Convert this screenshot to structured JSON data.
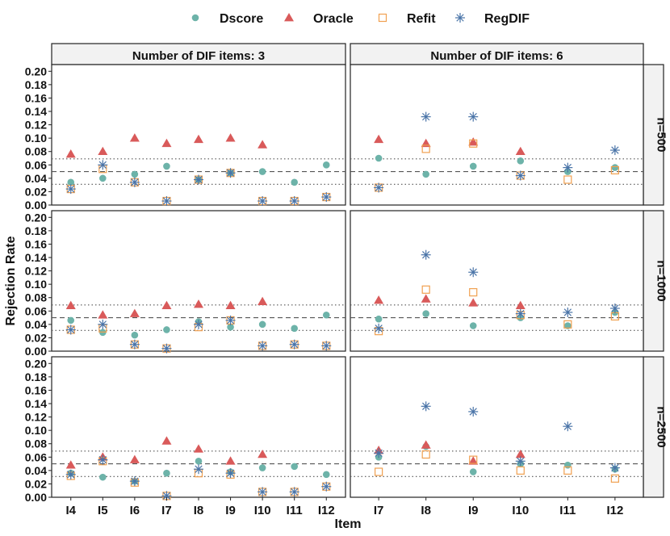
{
  "chart_data": {
    "type": "scatter",
    "facet_rows": [
      "n=500",
      "n=1000",
      "n=2500"
    ],
    "facet_cols": [
      "Number of DIF items: 3",
      "Number of DIF items: 6"
    ],
    "xlabel": "Item",
    "ylabel": "Rejection Rate",
    "ylim": [
      0,
      0.21
    ],
    "yticks": [
      "0.00",
      "0.02",
      "0.04",
      "0.06",
      "0.08",
      "0.10",
      "0.12",
      "0.14",
      "0.16",
      "0.18",
      "0.20"
    ],
    "reference_lines": {
      "dashed": 0.05,
      "dotted": [
        0.031,
        0.069
      ]
    },
    "legend": {
      "position": "top",
      "entries": [
        {
          "name": "Dscore",
          "symbol": "circle",
          "color": "#6db3a9"
        },
        {
          "name": "Oracle",
          "symbol": "triangle",
          "color": "#d95a5a"
        },
        {
          "name": "Refit",
          "symbol": "square-open",
          "color": "#f0a050"
        },
        {
          "name": "RegDIF",
          "symbol": "asterisk",
          "color": "#4a74a8"
        }
      ]
    },
    "panels": [
      {
        "row": 0,
        "col": 0,
        "categories": [
          "I4",
          "I5",
          "I6",
          "I7",
          "I8",
          "I9",
          "I10",
          "I11",
          "I12"
        ],
        "series": [
          {
            "name": "Dscore",
            "values": [
              0.034,
              0.04,
              0.046,
              0.058,
              0.038,
              0.048,
              0.05,
              0.034,
              0.06
            ]
          },
          {
            "name": "Oracle",
            "values": [
              0.076,
              0.08,
              0.1,
              0.092,
              0.098,
              0.1,
              0.09,
              null,
              null
            ]
          },
          {
            "name": "Refit",
            "values": [
              0.024,
              0.054,
              0.034,
              0.006,
              0.038,
              0.048,
              0.006,
              0.006,
              0.012
            ]
          },
          {
            "name": "RegDIF",
            "values": [
              0.024,
              0.06,
              0.034,
              0.006,
              0.038,
              0.048,
              0.006,
              0.006,
              0.012
            ]
          }
        ]
      },
      {
        "row": 0,
        "col": 1,
        "categories": [
          "I7",
          "I8",
          "I9",
          "I10",
          "I11",
          "I12"
        ],
        "series": [
          {
            "name": "Dscore",
            "values": [
              0.07,
              0.046,
              0.058,
              0.066,
              0.05,
              0.056
            ]
          },
          {
            "name": "Oracle",
            "values": [
              0.098,
              0.092,
              0.094,
              0.08,
              null,
              null
            ]
          },
          {
            "name": "Refit",
            "values": [
              0.026,
              0.084,
              0.092,
              0.044,
              0.038,
              0.052
            ]
          },
          {
            "name": "RegDIF",
            "values": [
              0.026,
              0.132,
              0.132,
              0.044,
              0.056,
              0.082
            ]
          }
        ]
      },
      {
        "row": 1,
        "col": 0,
        "categories": [
          "I4",
          "I5",
          "I6",
          "I7",
          "I8",
          "I9",
          "I10",
          "I11",
          "I12"
        ],
        "series": [
          {
            "name": "Dscore",
            "values": [
              0.046,
              0.028,
              0.024,
              0.032,
              0.044,
              0.036,
              0.04,
              0.034,
              0.054
            ]
          },
          {
            "name": "Oracle",
            "values": [
              0.068,
              0.054,
              0.056,
              0.068,
              0.07,
              0.068,
              0.074,
              null,
              null
            ]
          },
          {
            "name": "Refit",
            "values": [
              0.032,
              0.034,
              0.01,
              0.004,
              0.036,
              0.046,
              0.008,
              0.01,
              0.008
            ]
          },
          {
            "name": "RegDIF",
            "values": [
              0.032,
              0.04,
              0.01,
              0.004,
              0.04,
              0.046,
              0.008,
              0.01,
              0.008
            ]
          }
        ]
      },
      {
        "row": 1,
        "col": 1,
        "categories": [
          "I7",
          "I8",
          "I9",
          "I10",
          "I11",
          "I12"
        ],
        "series": [
          {
            "name": "Dscore",
            "values": [
              0.048,
              0.056,
              0.038,
              0.05,
              0.038,
              0.058
            ]
          },
          {
            "name": "Oracle",
            "values": [
              0.076,
              0.078,
              0.072,
              0.068,
              null,
              null
            ]
          },
          {
            "name": "Refit",
            "values": [
              0.03,
              0.092,
              0.088,
              0.054,
              0.04,
              0.052
            ]
          },
          {
            "name": "RegDIF",
            "values": [
              0.034,
              0.144,
              0.118,
              0.056,
              0.058,
              0.064
            ]
          }
        ]
      },
      {
        "row": 2,
        "col": 0,
        "categories": [
          "I4",
          "I5",
          "I6",
          "I7",
          "I8",
          "I9",
          "I10",
          "I11",
          "I12"
        ],
        "series": [
          {
            "name": "Dscore",
            "values": [
              0.036,
              0.03,
              0.024,
              0.036,
              0.054,
              0.038,
              0.044,
              0.046,
              0.034
            ]
          },
          {
            "name": "Oracle",
            "values": [
              0.048,
              0.06,
              0.056,
              0.084,
              0.072,
              0.054,
              0.064,
              null,
              null
            ]
          },
          {
            "name": "Refit",
            "values": [
              0.032,
              0.054,
              0.022,
              0.002,
              0.036,
              0.034,
              0.008,
              0.008,
              0.016
            ]
          },
          {
            "name": "RegDIF",
            "values": [
              0.034,
              0.056,
              0.024,
              0.002,
              0.042,
              0.036,
              0.008,
              0.008,
              0.016
            ]
          }
        ]
      },
      {
        "row": 2,
        "col": 1,
        "categories": [
          "I7",
          "I8",
          "I9",
          "I10",
          "I11",
          "I12"
        ],
        "series": [
          {
            "name": "Dscore",
            "values": [
              0.06,
              0.076,
              0.038,
              0.05,
              0.048,
              0.042
            ]
          },
          {
            "name": "Oracle",
            "values": [
              0.07,
              0.078,
              0.054,
              0.064,
              null,
              null
            ]
          },
          {
            "name": "Refit",
            "values": [
              0.038,
              0.064,
              0.056,
              0.04,
              0.04,
              0.028
            ]
          },
          {
            "name": "RegDIF",
            "values": [
              0.066,
              0.136,
              0.128,
              0.054,
              0.106,
              0.044
            ]
          }
        ]
      }
    ]
  }
}
